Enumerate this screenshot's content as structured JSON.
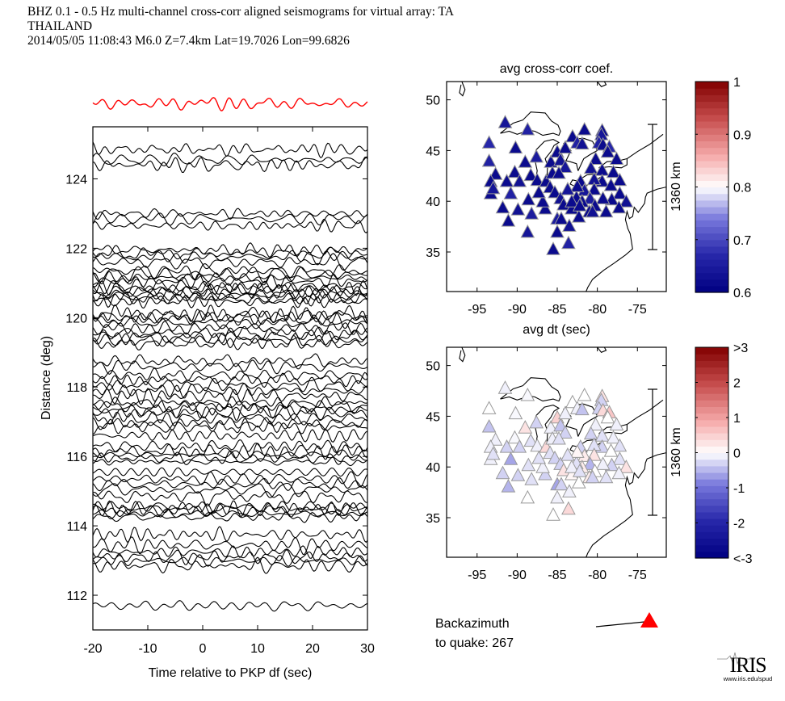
{
  "header": {
    "line1": "BHZ  0.1 - 0.5 Hz  multi-channel cross-corr aligned seismograms for virtual array: TA",
    "line2": "THAILAND",
    "line3": "2014/05/05  11:08:43  M6.0  Z=7.4km Lat=19.7026 Lon=99.6826"
  },
  "backazimuth": {
    "label1": "Backazimuth",
    "label2": "to quake:  267",
    "value_deg": 267,
    "arrow_color": "#ff0000"
  },
  "logo": {
    "name": "IRIS",
    "url": "www.iris.edu/spud"
  },
  "colors": {
    "trace": "#000000",
    "stack": "#ff0000",
    "triangle_edge": "#999999"
  },
  "chart_data": [
    {
      "type": "line",
      "name": "seismogram-section",
      "title": "",
      "xlabel": "Time relative to PKP df (sec)",
      "ylabel": "Distance (deg)",
      "xlim": [
        -20,
        30
      ],
      "ylim": [
        111.0,
        125.5
      ],
      "xticks": [
        -20,
        -10,
        0,
        10,
        20,
        30
      ],
      "xtick_labels": [
        "-20",
        "-10",
        "0",
        "10",
        "20",
        "30"
      ],
      "yticks": [
        112,
        114,
        116,
        118,
        120,
        122,
        124
      ],
      "ytick_labels": [
        "112",
        "114",
        "116",
        "118",
        "120",
        "122",
        "124"
      ],
      "stack_trace": {
        "label": "stack",
        "color": "#ff0000"
      },
      "trace_distances_deg": [
        124.85,
        124.55,
        124.4,
        123.0,
        122.85,
        122.65,
        121.95,
        121.85,
        121.75,
        121.6,
        121.35,
        121.25,
        121.15,
        121.05,
        120.9,
        120.85,
        120.75,
        120.7,
        120.6,
        120.55,
        120.45,
        120.1,
        120.05,
        119.95,
        119.85,
        119.7,
        119.55,
        119.45,
        119.35,
        119.25,
        118.75,
        118.6,
        118.35,
        118.2,
        118.05,
        117.9,
        117.75,
        117.55,
        117.45,
        117.35,
        117.25,
        117.1,
        116.95,
        116.85,
        116.6,
        116.3,
        116.15,
        116.05,
        115.95,
        115.85,
        115.55,
        115.35,
        115.2,
        115.05,
        114.85,
        114.55,
        114.5,
        114.45,
        114.35,
        114.25,
        113.75,
        113.45,
        113.25,
        113.1,
        113.0,
        112.85,
        111.7
      ]
    },
    {
      "type": "scatter",
      "name": "avg-cross-corr-map",
      "title": "avg cross-corr coef.",
      "xlabel": "avg dt (sec)",
      "ylabel": "",
      "xlim": [
        -98.8,
        -71.4
      ],
      "ylim": [
        31.1,
        51.8
      ],
      "xticks": [
        -95,
        -90,
        -85,
        -80,
        -75
      ],
      "xtick_labels": [
        "-95",
        "-90",
        "-85",
        "-80",
        "-75"
      ],
      "yticks": [
        35,
        40,
        45,
        50
      ],
      "ytick_labels": [
        "35",
        "40",
        "45",
        "50"
      ],
      "scale_bar_label": "1360 km",
      "colorbar": {
        "min": 0.6,
        "max": 1.0,
        "ticks": [
          0.6,
          0.7,
          0.8,
          0.9,
          1.0
        ],
        "tick_labels": [
          "0.6",
          "0.7",
          "0.8",
          "0.9",
          "1"
        ],
        "colormap": "blue-white-red"
      }
    },
    {
      "type": "scatter",
      "name": "avg-dt-map",
      "title": "avg dt (sec)",
      "xlabel": "",
      "ylabel": "",
      "xlim": [
        -98.8,
        -71.4
      ],
      "ylim": [
        31.1,
        51.8
      ],
      "xticks": [
        -95,
        -90,
        -85,
        -80,
        -75
      ],
      "xtick_labels": [
        "-95",
        "-90",
        "-85",
        "-80",
        "-75"
      ],
      "yticks": [
        35,
        40,
        45,
        50
      ],
      "ytick_labels": [
        "35",
        "40",
        "45",
        "50"
      ],
      "scale_bar_label": "1360 km",
      "colorbar": {
        "min": -3,
        "max": 3,
        "ticks": [
          -3,
          -2,
          -1,
          0,
          1,
          2,
          3
        ],
        "tick_labels": [
          "<-3",
          "-2",
          "-1",
          "0",
          "1",
          "2",
          ">3"
        ],
        "colormap": "blue-white-red"
      }
    }
  ],
  "stations": [
    {
      "lon": -91.5,
      "lat": 47.8,
      "cc": 0.64,
      "dt": -0.1
    },
    {
      "lon": -88.7,
      "lat": 47.1,
      "cc": 0.66,
      "dt": -0.05
    },
    {
      "lon": -93.5,
      "lat": 45.8,
      "cc": 0.67,
      "dt": 0.0
    },
    {
      "lon": -90.2,
      "lat": 45.3,
      "cc": 0.62,
      "dt": -0.05
    },
    {
      "lon": -93.5,
      "lat": 44.0,
      "cc": 0.66,
      "dt": -0.4
    },
    {
      "lon": -87.6,
      "lat": 44.4,
      "cc": 0.65,
      "dt": -0.3
    },
    {
      "lon": -89.0,
      "lat": 43.9,
      "cc": 0.62,
      "dt": 0.3
    },
    {
      "lon": -92.7,
      "lat": 42.7,
      "cc": 0.62,
      "dt": -0.1
    },
    {
      "lon": -90.3,
      "lat": 42.9,
      "cc": 0.62,
      "dt": -0.05
    },
    {
      "lon": -93.3,
      "lat": 42.0,
      "cc": 0.62,
      "dt": -0.1
    },
    {
      "lon": -91.3,
      "lat": 42.0,
      "cc": 0.62,
      "dt": -0.3
    },
    {
      "lon": -89.7,
      "lat": 42.0,
      "cc": 0.63,
      "dt": -0.3
    },
    {
      "lon": -88.3,
      "lat": 42.6,
      "cc": 0.62,
      "dt": -0.2
    },
    {
      "lon": -87.5,
      "lat": 42.1,
      "cc": 0.62,
      "dt": -0.1
    },
    {
      "lon": -93.3,
      "lat": 40.8,
      "cc": 0.62,
      "dt": -0.1
    },
    {
      "lon": -90.8,
      "lat": 40.8,
      "cc": 0.66,
      "dt": -0.6
    },
    {
      "lon": -88.6,
      "lat": 40.2,
      "cc": 0.62,
      "dt": -0.2
    },
    {
      "lon": -91.8,
      "lat": 39.4,
      "cc": 0.62,
      "dt": -0.3
    },
    {
      "lon": -88.2,
      "lat": 38.8,
      "cc": 0.65,
      "dt": -0.2
    },
    {
      "lon": -86.5,
      "lat": 39.3,
      "cc": 0.62,
      "dt": -0.3
    },
    {
      "lon": -91.1,
      "lat": 38.1,
      "cc": 0.62,
      "dt": -0.5
    },
    {
      "lon": -88.7,
      "lat": 37.0,
      "cc": 0.64,
      "dt": 0.0
    },
    {
      "lon": -85.0,
      "lat": 38.3,
      "cc": 0.65,
      "dt": -0.6
    },
    {
      "lon": -84.5,
      "lat": 38.3,
      "cc": 0.62,
      "dt": -0.3
    },
    {
      "lon": -83.5,
      "lat": 37.6,
      "cc": 0.63,
      "dt": -0.1
    },
    {
      "lon": -85.0,
      "lat": 37.0,
      "cc": 0.62,
      "dt": -0.1
    },
    {
      "lon": -85.5,
      "lat": 35.3,
      "cc": 0.62,
      "dt": 0.0
    },
    {
      "lon": -83.6,
      "lat": 35.9,
      "cc": 0.66,
      "dt": 0.4
    },
    {
      "lon": -86.4,
      "lat": 42.0,
      "cc": 0.62,
      "dt": 0.4
    },
    {
      "lon": -85.9,
      "lat": 41.4,
      "cc": 0.62,
      "dt": -0.2
    },
    {
      "lon": -85.3,
      "lat": 40.9,
      "cc": 0.62,
      "dt": -0.3
    },
    {
      "lon": -84.6,
      "lat": 40.3,
      "cc": 0.63,
      "dt": -0.3
    },
    {
      "lon": -84.2,
      "lat": 39.7,
      "cc": 0.62,
      "dt": 0.3
    },
    {
      "lon": -83.2,
      "lat": 39.3,
      "cc": 0.62,
      "dt": 0.1
    },
    {
      "lon": -82.3,
      "lat": 38.5,
      "cc": 0.62,
      "dt": 0.0
    },
    {
      "lon": -85.8,
      "lat": 43.9,
      "cc": 0.62,
      "dt": -0.1
    },
    {
      "lon": -85.0,
      "lat": 44.9,
      "cc": 0.62,
      "dt": 0.5
    },
    {
      "lon": -84.6,
      "lat": 44.1,
      "cc": 0.63,
      "dt": -0.4
    },
    {
      "lon": -84.0,
      "lat": 43.4,
      "cc": 0.64,
      "dt": -0.3
    },
    {
      "lon": -85.6,
      "lat": 42.8,
      "cc": 0.62,
      "dt": -0.1
    },
    {
      "lon": -84.8,
      "lat": 42.8,
      "cc": 0.62,
      "dt": -0.2
    },
    {
      "lon": -84.0,
      "lat": 45.3,
      "cc": 0.62,
      "dt": -0.1
    },
    {
      "lon": -83.1,
      "lat": 46.4,
      "cc": 0.62,
      "dt": 0.0
    },
    {
      "lon": -82.5,
      "lat": 45.8,
      "cc": 0.66,
      "dt": -0.1
    },
    {
      "lon": -81.6,
      "lat": 47.1,
      "cc": 0.62,
      "dt": 0.0
    },
    {
      "lon": -81.9,
      "lat": 45.7,
      "cc": 0.63,
      "dt": -0.4
    },
    {
      "lon": -79.4,
      "lat": 47.0,
      "cc": 0.62,
      "dt": 0.3
    },
    {
      "lon": -79.5,
      "lat": 46.6,
      "cc": 0.64,
      "dt": -0.3
    },
    {
      "lon": -79.8,
      "lat": 45.8,
      "cc": 0.66,
      "dt": -0.3
    },
    {
      "lon": -79.3,
      "lat": 45.6,
      "cc": 0.62,
      "dt": 0.4
    },
    {
      "lon": -78.5,
      "lat": 45.4,
      "cc": 0.67,
      "dt": 0.6
    },
    {
      "lon": -78.7,
      "lat": 44.9,
      "cc": 0.62,
      "dt": 0.0
    },
    {
      "lon": -77.6,
      "lat": 44.2,
      "cc": 0.62,
      "dt": -0.1
    },
    {
      "lon": -80.2,
      "lat": 44.2,
      "cc": 0.62,
      "dt": -0.1
    },
    {
      "lon": -80.8,
      "lat": 43.3,
      "cc": 0.63,
      "dt": -0.3
    },
    {
      "lon": -79.4,
      "lat": 43.1,
      "cc": 0.62,
      "dt": -0.2
    },
    {
      "lon": -78.0,
      "lat": 42.9,
      "cc": 0.62,
      "dt": -0.1
    },
    {
      "lon": -77.2,
      "lat": 42.1,
      "cc": 0.62,
      "dt": -0.2
    },
    {
      "lon": -79.4,
      "lat": 42.0,
      "cc": 0.62,
      "dt": -0.3
    },
    {
      "lon": -80.4,
      "lat": 42.2,
      "cc": 0.63,
      "dt": -0.2
    },
    {
      "lon": -82.1,
      "lat": 42.0,
      "cc": 0.62,
      "dt": -0.3
    },
    {
      "lon": -81.6,
      "lat": 41.1,
      "cc": 0.64,
      "dt": 0.2
    },
    {
      "lon": -80.4,
      "lat": 41.2,
      "cc": 0.62,
      "dt": 0.3
    },
    {
      "lon": -78.3,
      "lat": 41.6,
      "cc": 0.62,
      "dt": 0.0
    },
    {
      "lon": -77.2,
      "lat": 40.8,
      "cc": 0.62,
      "dt": -0.2
    },
    {
      "lon": -76.4,
      "lat": 40.0,
      "cc": 0.63,
      "dt": 0.3
    },
    {
      "lon": -78.2,
      "lat": 40.2,
      "cc": 0.62,
      "dt": -0.3
    },
    {
      "lon": -79.3,
      "lat": 40.3,
      "cc": 0.62,
      "dt": -0.1
    },
    {
      "lon": -80.9,
      "lat": 40.3,
      "cc": 0.65,
      "dt": -0.5
    },
    {
      "lon": -81.9,
      "lat": 40.0,
      "cc": 0.62,
      "dt": 0.2
    },
    {
      "lon": -82.6,
      "lat": 40.4,
      "cc": 0.62,
      "dt": -0.2
    },
    {
      "lon": -83.2,
      "lat": 40.0,
      "cc": 0.62,
      "dt": -0.1
    },
    {
      "lon": -82.2,
      "lat": 39.6,
      "cc": 0.62,
      "dt": -0.2
    },
    {
      "lon": -80.3,
      "lat": 39.6,
      "cc": 0.62,
      "dt": 0.0
    },
    {
      "lon": -81.0,
      "lat": 39.0,
      "cc": 0.62,
      "dt": 0.2
    },
    {
      "lon": -80.6,
      "lat": 39.0,
      "cc": 0.63,
      "dt": -0.3
    },
    {
      "lon": -78.9,
      "lat": 39.0,
      "cc": 0.62,
      "dt": -0.2
    },
    {
      "lon": -77.3,
      "lat": 39.4,
      "cc": 0.62,
      "dt": -0.1
    },
    {
      "lon": -82.5,
      "lat": 41.5,
      "cc": 0.62,
      "dt": 0.1
    },
    {
      "lon": -83.7,
      "lat": 41.2,
      "cc": 0.64,
      "dt": -0.2
    },
    {
      "lon": -86.8,
      "lat": 40.0,
      "cc": 0.62,
      "dt": -0.1
    },
    {
      "lon": -87.3,
      "lat": 40.9,
      "cc": 0.62,
      "dt": -0.2
    },
    {
      "lon": -89.9,
      "lat": 39.2,
      "cc": 0.63,
      "dt": -0.3
    },
    {
      "lon": -93.0,
      "lat": 41.3,
      "cc": 0.64,
      "dt": -0.2
    }
  ]
}
